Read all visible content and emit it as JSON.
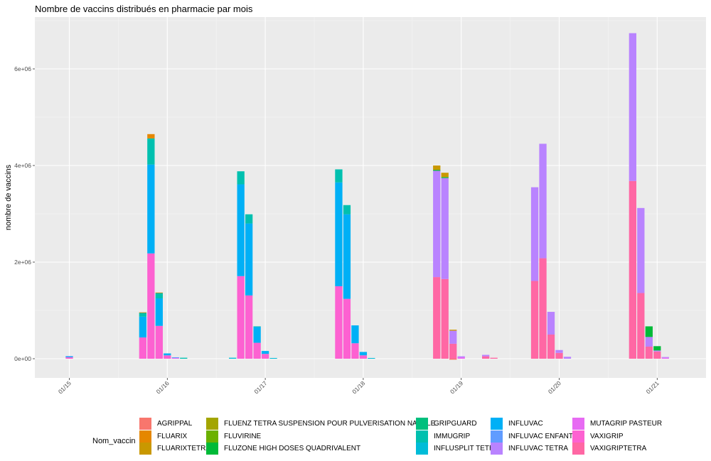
{
  "chart_data": {
    "type": "bar",
    "stacked": true,
    "title": "Nombre de vaccins distribués en pharmacie par mois",
    "xlabel": "",
    "ylabel": "nombre de vaccins",
    "ylim": [
      -400000,
      7100000
    ],
    "yticks": [
      0,
      2000000,
      4000000,
      6000000
    ],
    "ytick_labels": [
      "0e+00",
      "2e+06",
      "4e+06",
      "6e+06"
    ],
    "xticks": [
      "2015-01",
      "2016-01",
      "2017-01",
      "2018-01",
      "2019-01",
      "2020-01",
      "2021-01"
    ],
    "xtick_labels": [
      "01/15",
      "01/16",
      "01/17",
      "01/18",
      "01/19",
      "01/20",
      "01/21"
    ],
    "xlim": [
      "2014-09",
      "2021-08"
    ],
    "grid": true,
    "legend_title": "Nom_vaccin",
    "legend_position": "bottom",
    "legend": [
      {
        "name": "AGRIPPAL",
        "color": "#F8766D"
      },
      {
        "name": "FLUARIX",
        "color": "#E58700"
      },
      {
        "name": "FLUARIXTETRA",
        "color": "#C99800"
      },
      {
        "name": "FLUENZ TETRA SUSPENSION POUR PULVERISATION NASALE",
        "color": "#A3A500"
      },
      {
        "name": "FLUVIRINE",
        "color": "#6BB100"
      },
      {
        "name": "FLUZONE HIGH DOSES QUADRIVALENT",
        "color": "#00BA38"
      },
      {
        "name": "GRIPGUARD",
        "color": "#00BF7D"
      },
      {
        "name": "IMMUGRIP",
        "color": "#00C0AF"
      },
      {
        "name": "INFLUSPLIT TETRA",
        "color": "#00BCD8"
      },
      {
        "name": "INFLUVAC",
        "color": "#00B0F6"
      },
      {
        "name": "INFLUVAC ENFANT",
        "color": "#619CFF"
      },
      {
        "name": "INFLUVAC TETRA",
        "color": "#B983FF"
      },
      {
        "name": "MUTAGRIP PASTEUR",
        "color": "#E76BF3"
      },
      {
        "name": "VAXIGRIP",
        "color": "#FD61D1"
      },
      {
        "name": "VAXIGRIPTETRA",
        "color": "#FF67A4"
      }
    ],
    "bars": [
      {
        "month": "2015-01",
        "segments": [
          {
            "name": "VAXIGRIP",
            "value": 30000
          },
          {
            "name": "INFLUVAC",
            "value": 15000
          },
          {
            "name": "INFLUVAC ENFANT",
            "value": 10000
          }
        ]
      },
      {
        "month": "2015-10",
        "segments": [
          {
            "name": "VAXIGRIP",
            "value": 440000
          },
          {
            "name": "INFLUVAC",
            "value": 430000
          },
          {
            "name": "IMMUGRIP",
            "value": 80000
          },
          {
            "name": "FLUARIX",
            "value": 10000
          }
        ]
      },
      {
        "month": "2015-11",
        "segments": [
          {
            "name": "VAXIGRIP",
            "value": 2180000
          },
          {
            "name": "INFLUVAC",
            "value": 1840000
          },
          {
            "name": "IMMUGRIP",
            "value": 540000
          },
          {
            "name": "FLUARIX",
            "value": 90000
          }
        ]
      },
      {
        "month": "2015-12",
        "segments": [
          {
            "name": "VAXIGRIP",
            "value": 680000
          },
          {
            "name": "INFLUVAC",
            "value": 570000
          },
          {
            "name": "IMMUGRIP",
            "value": 110000
          },
          {
            "name": "FLUARIX",
            "value": 10000
          }
        ]
      },
      {
        "month": "2016-01",
        "segments": [
          {
            "name": "VAXIGRIP",
            "value": 70000
          },
          {
            "name": "INFLUVAC",
            "value": 40000
          }
        ]
      },
      {
        "month": "2016-02",
        "segments": [
          {
            "name": "MUTAGRIP PASTEUR",
            "value": 15000
          },
          {
            "name": "INFLUVAC ENFANT",
            "value": 15000
          }
        ]
      },
      {
        "month": "2016-03",
        "segments": [
          {
            "name": "IMMUGRIP",
            "value": 20000
          }
        ]
      },
      {
        "month": "2016-09",
        "segments": [
          {
            "name": "INFLUSPLIT TETRA",
            "value": 20000
          }
        ]
      },
      {
        "month": "2016-10",
        "segments": [
          {
            "name": "VAXIGRIP",
            "value": 1710000
          },
          {
            "name": "INFLUVAC",
            "value": 1900000
          },
          {
            "name": "IMMUGRIP",
            "value": 270000
          }
        ]
      },
      {
        "month": "2016-11",
        "segments": [
          {
            "name": "VAXIGRIP",
            "value": 1310000
          },
          {
            "name": "INFLUVAC",
            "value": 1490000
          },
          {
            "name": "IMMUGRIP",
            "value": 190000
          }
        ]
      },
      {
        "month": "2016-12",
        "segments": [
          {
            "name": "VAXIGRIP",
            "value": 330000
          },
          {
            "name": "INFLUVAC",
            "value": 330000
          },
          {
            "name": "IMMUGRIP",
            "value": 10000
          }
        ]
      },
      {
        "month": "2017-01",
        "segments": [
          {
            "name": "VAXIGRIP",
            "value": 100000
          },
          {
            "name": "INFLUVAC",
            "value": 60000
          }
        ]
      },
      {
        "month": "2017-02",
        "segments": [
          {
            "name": "INFLUSPLIT TETRA",
            "value": 15000
          }
        ]
      },
      {
        "month": "2017-10",
        "segments": [
          {
            "name": "VAXIGRIP",
            "value": 1500000
          },
          {
            "name": "INFLUVAC",
            "value": 2150000
          },
          {
            "name": "IMMUGRIP",
            "value": 270000
          }
        ]
      },
      {
        "month": "2017-11",
        "segments": [
          {
            "name": "VAXIGRIP",
            "value": 1240000
          },
          {
            "name": "INFLUVAC",
            "value": 1750000
          },
          {
            "name": "IMMUGRIP",
            "value": 190000
          }
        ]
      },
      {
        "month": "2017-12",
        "segments": [
          {
            "name": "VAXIGRIP",
            "value": 320000
          },
          {
            "name": "INFLUVAC",
            "value": 370000
          }
        ]
      },
      {
        "month": "2018-01",
        "segments": [
          {
            "name": "VAXIGRIP",
            "value": 70000
          },
          {
            "name": "INFLUVAC",
            "value": 70000
          }
        ]
      },
      {
        "month": "2018-02",
        "segments": [
          {
            "name": "INFLUSPLIT TETRA",
            "value": 15000
          }
        ]
      },
      {
        "month": "2018-10",
        "segments": [
          {
            "name": "VAXIGRIPTETRA",
            "value": 1690000
          },
          {
            "name": "INFLUVAC TETRA",
            "value": 2200000
          },
          {
            "name": "FLUZONE HIGH DOSES QUADRIVALENT",
            "value": 20000
          },
          {
            "name": "FLUARIXTETRA",
            "value": 90000
          }
        ]
      },
      {
        "month": "2018-11",
        "segments": [
          {
            "name": "VAXIGRIPTETRA",
            "value": 1650000
          },
          {
            "name": "INFLUVAC TETRA",
            "value": 2090000
          },
          {
            "name": "FLUZONE HIGH DOSES QUADRIVALENT",
            "value": 20000
          },
          {
            "name": "FLUARIXTETRA",
            "value": 90000
          }
        ]
      },
      {
        "month": "2018-12",
        "segments": [
          {
            "name": "VAXIGRIPTETRA",
            "value": 310000
          },
          {
            "name": "INFLUVAC TETRA",
            "value": 270000
          },
          {
            "name": "FLUARIXTETRA",
            "value": 20000
          },
          {
            "name": "AGRIPPAL",
            "value": -20000
          }
        ]
      },
      {
        "month": "2019-01",
        "segments": [
          {
            "name": "MUTAGRIP PASTEUR",
            "value": 30000
          },
          {
            "name": "INFLUVAC TETRA",
            "value": 20000
          }
        ]
      },
      {
        "month": "2019-04",
        "segments": [
          {
            "name": "VAXIGRIPTETRA",
            "value": 50000
          },
          {
            "name": "INFLUVAC TETRA",
            "value": 30000
          }
        ]
      },
      {
        "month": "2019-05",
        "segments": [
          {
            "name": "VAXIGRIPTETRA",
            "value": 20000
          }
        ]
      },
      {
        "month": "2019-10",
        "segments": [
          {
            "name": "VAXIGRIPTETRA",
            "value": 1610000
          },
          {
            "name": "INFLUVAC TETRA",
            "value": 1940000
          }
        ]
      },
      {
        "month": "2019-11",
        "segments": [
          {
            "name": "VAXIGRIPTETRA",
            "value": 2080000
          },
          {
            "name": "INFLUVAC TETRA",
            "value": 2370000
          }
        ]
      },
      {
        "month": "2019-12",
        "segments": [
          {
            "name": "VAXIGRIPTETRA",
            "value": 500000
          },
          {
            "name": "INFLUVAC TETRA",
            "value": 470000
          }
        ]
      },
      {
        "month": "2020-01",
        "segments": [
          {
            "name": "VAXIGRIPTETRA",
            "value": 120000
          },
          {
            "name": "INFLUVAC TETRA",
            "value": 60000
          }
        ]
      },
      {
        "month": "2020-02",
        "segments": [
          {
            "name": "INFLUVAC TETRA",
            "value": 40000
          }
        ]
      },
      {
        "month": "2020-10",
        "segments": [
          {
            "name": "VAXIGRIPTETRA",
            "value": 3680000
          },
          {
            "name": "INFLUVAC TETRA",
            "value": 3060000
          }
        ]
      },
      {
        "month": "2020-11",
        "segments": [
          {
            "name": "VAXIGRIPTETRA",
            "value": 1360000
          },
          {
            "name": "INFLUVAC TETRA",
            "value": 1760000
          }
        ]
      },
      {
        "month": "2020-12",
        "segments": [
          {
            "name": "VAXIGRIPTETRA",
            "value": 250000
          },
          {
            "name": "INFLUVAC TETRA",
            "value": 200000
          },
          {
            "name": "FLUZONE HIGH DOSES QUADRIVALENT",
            "value": 220000
          }
        ]
      },
      {
        "month": "2021-01",
        "segments": [
          {
            "name": "VAXIGRIPTETRA",
            "value": 150000
          },
          {
            "name": "INFLUVAC TETRA",
            "value": 20000
          },
          {
            "name": "FLUZONE HIGH DOSES QUADRIVALENT",
            "value": 90000
          }
        ]
      },
      {
        "month": "2021-02",
        "segments": [
          {
            "name": "MUTAGRIP PASTEUR",
            "value": 20000
          },
          {
            "name": "INFLUVAC TETRA",
            "value": 15000
          }
        ]
      }
    ]
  }
}
